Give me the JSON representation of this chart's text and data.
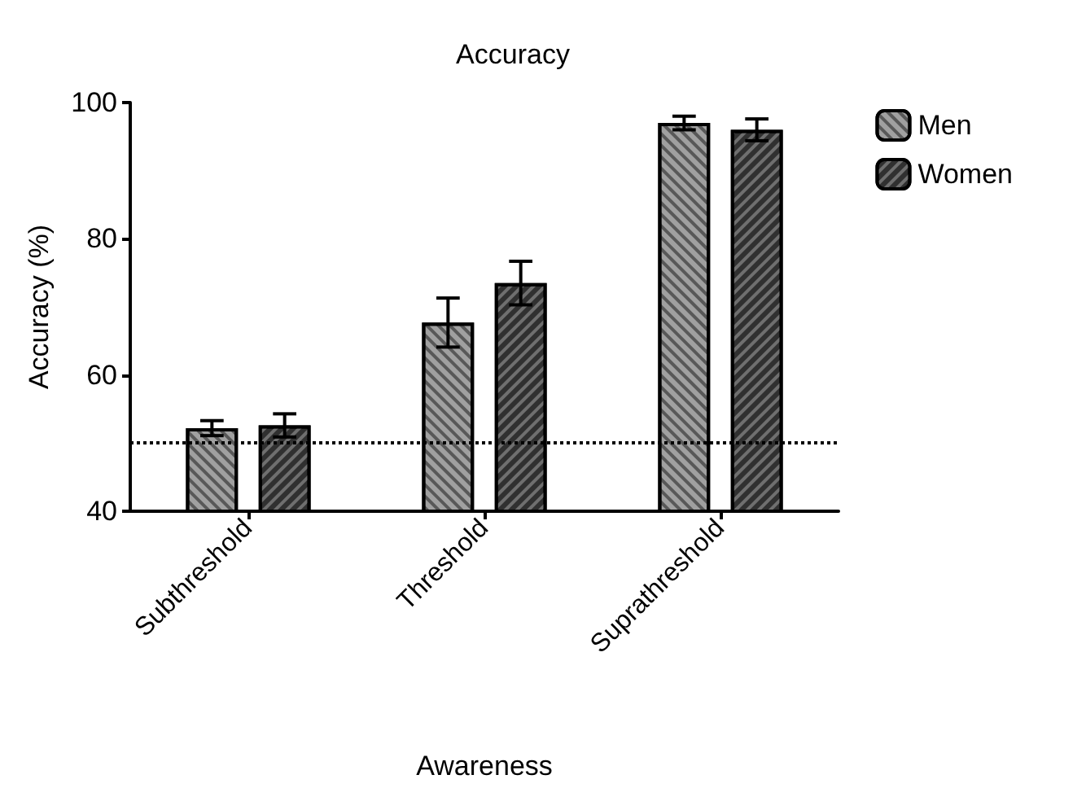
{
  "chart_data": {
    "type": "bar",
    "title": "Accuracy",
    "xlabel": "Awareness",
    "ylabel": "Accuracy (%)",
    "categories": [
      "Subthreshold",
      "Threshold",
      "Suprathreshold"
    ],
    "series": [
      {
        "name": "Men",
        "color": "#a0a0a0",
        "values": [
          52.2,
          67.7,
          97.0
        ],
        "errors": [
          1.1,
          3.6,
          1.0
        ]
      },
      {
        "name": "Women",
        "color": "#303030",
        "values": [
          52.6,
          73.5,
          96.0
        ],
        "errors": [
          1.7,
          3.2,
          1.6
        ]
      }
    ],
    "ylim": [
      40,
      100
    ],
    "yticks": [
      40,
      60,
      80,
      100
    ],
    "ref_lines": [
      {
        "axis": "y",
        "value": 50,
        "line_style": "dotted",
        "color": "#000000"
      }
    ],
    "grid": false,
    "legend": "top right"
  }
}
